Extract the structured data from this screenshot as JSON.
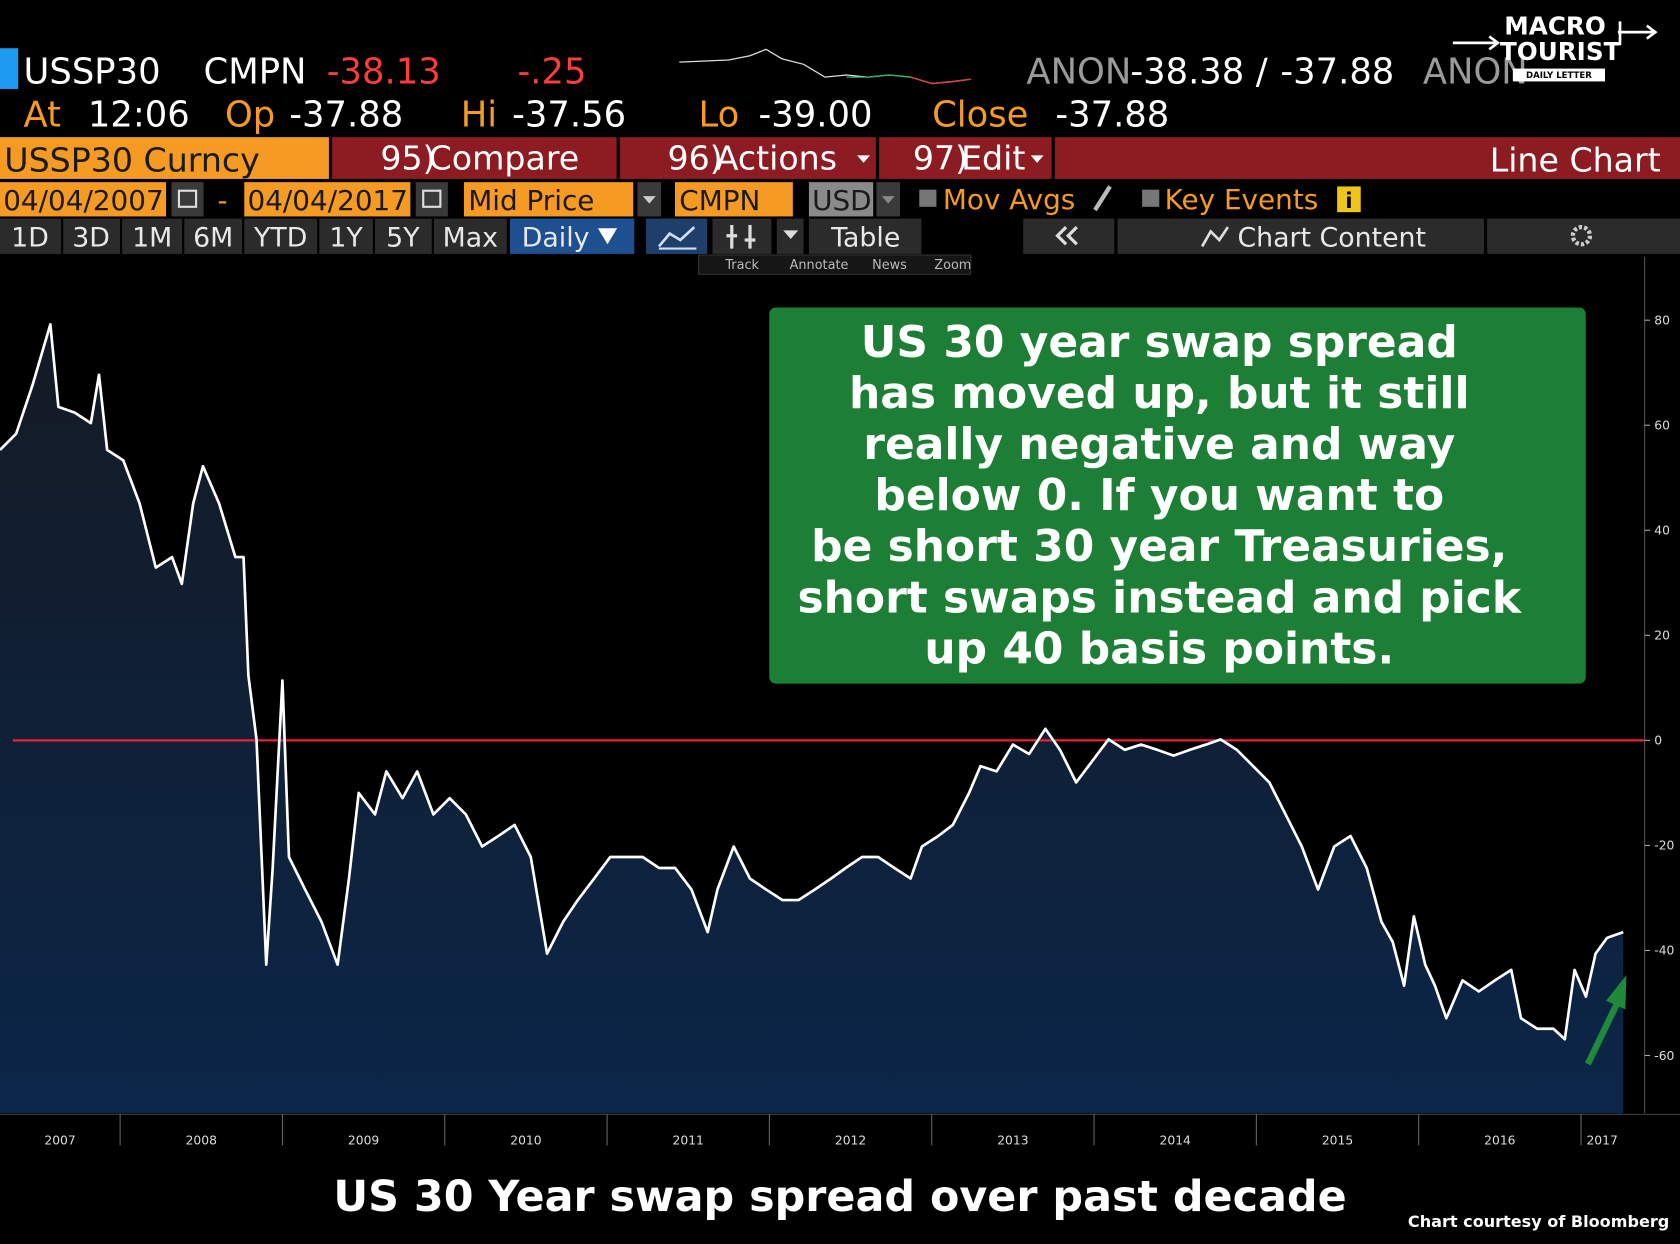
{
  "header": {
    "ticker": "USSP30",
    "source": "CMPN",
    "last": "-38.13",
    "change": "-.25",
    "bid_source": "ANON",
    "bid": "-38.38",
    "separator": "/",
    "ask": "-37.88",
    "ask_source": "ANON"
  },
  "quote": [
    {
      "label": "At",
      "value": "12:06"
    },
    {
      "label": "Op",
      "value": "-37.88"
    },
    {
      "label": "Hi",
      "value": "-37.56"
    },
    {
      "label": "Lo",
      "value": "-39.00"
    },
    {
      "label": "Close",
      "value": "-37.88"
    }
  ],
  "logo": {
    "line1": "MACRO",
    "line2": "TOURIST",
    "line3": "DAILY LETTER"
  },
  "menu": {
    "security": "USSP30 Curncy",
    "items": [
      {
        "number": "95)",
        "label": "Compare"
      },
      {
        "number": "96)",
        "label": "Actions"
      },
      {
        "number": "97)",
        "label": "Edit"
      }
    ],
    "chart_type": "Line Chart"
  },
  "range_bar": {
    "start": "04/04/2007",
    "dash": "-",
    "end": "04/04/2017",
    "price": "Mid Price",
    "source": "CMPN",
    "currency": "USD",
    "mov_avgs": "Mov Avgs",
    "key_events": "Key Events",
    "info": "i"
  },
  "tabs": [
    "1D",
    "3D",
    "1M",
    "6M",
    "YTD",
    "1Y",
    "5Y",
    "Max",
    "Daily"
  ],
  "table_tab": "Table",
  "chart_content": "Chart Content",
  "tools": [
    "Track",
    "Annotate",
    "News",
    "Zoom"
  ],
  "chart_data": {
    "type": "line",
    "title": "US 30 Year swap spread over past decade",
    "credit": "Chart courtesy of Bloomberg",
    "annotation": [
      "US 30 year swap spread",
      "has moved up, but it still",
      "really negative and way",
      "below 0.  If you want to",
      "be short 30 year Treasuries,",
      "short swaps instead and pick",
      "up 40 basis points."
    ],
    "color": "#ffffff",
    "x": [
      2007.26,
      2007.36,
      2007.46,
      2007.57,
      2007.62,
      2007.72,
      2007.82,
      2007.87,
      2007.92,
      2008.02,
      2008.12,
      2008.22,
      2008.32,
      2008.38,
      2008.45,
      2008.51,
      2008.61,
      2008.71,
      2008.76,
      2008.79,
      2008.84,
      2008.9,
      2008.94,
      2009.0,
      2009.04,
      2009.14,
      2009.24,
      2009.34,
      2009.41,
      2009.47,
      2009.57,
      2009.64,
      2009.74,
      2009.83,
      2009.93,
      2010.03,
      2010.13,
      2010.23,
      2010.33,
      2010.43,
      2010.53,
      2010.63,
      2010.73,
      2010.82,
      2010.92,
      2011.02,
      2011.12,
      2011.22,
      2011.32,
      2011.42,
      2011.52,
      2011.62,
      2011.68,
      2011.78,
      2011.88,
      2011.98,
      2012.08,
      2012.18,
      2012.28,
      2012.38,
      2012.47,
      2012.57,
      2012.67,
      2012.77,
      2012.87,
      2012.94,
      2013.04,
      2013.13,
      2013.23,
      2013.3,
      2013.4,
      2013.5,
      2013.6,
      2013.7,
      2013.79,
      2013.89,
      2013.99,
      2014.09,
      2014.19,
      2014.29,
      2014.39,
      2014.49,
      2014.59,
      2014.69,
      2014.78,
      2014.88,
      2014.98,
      2015.08,
      2015.18,
      2015.28,
      2015.38,
      2015.48,
      2015.58,
      2015.68,
      2015.77,
      2015.84,
      2015.91,
      2015.97,
      2016.04,
      2016.1,
      2016.17,
      2016.27,
      2016.37,
      2016.47,
      2016.57,
      2016.63,
      2016.73,
      2016.83,
      2016.9,
      2016.96,
      2017.03,
      2017.09,
      2017.16,
      2017.26
    ],
    "values": [
      55.3,
      58.4,
      67.6,
      79.2,
      63.5,
      62.4,
      60.4,
      69.6,
      55.3,
      53.3,
      45.1,
      32.9,
      34.9,
      29.8,
      45.1,
      52.2,
      45.1,
      34.9,
      34.9,
      12.4,
      0.2,
      -42.7,
      -24.3,
      11.4,
      -22.2,
      -28.4,
      -34.5,
      -42.7,
      -26.3,
      -10.0,
      -14.1,
      -5.9,
      -11.0,
      -5.9,
      -14.1,
      -11.0,
      -14.1,
      -20.2,
      -18.2,
      -16.1,
      -22.2,
      -40.6,
      -34.5,
      -30.4,
      -26.3,
      -22.2,
      -22.2,
      -22.2,
      -24.3,
      -24.3,
      -28.4,
      -36.5,
      -28.4,
      -20.2,
      -26.3,
      -28.4,
      -30.4,
      -30.4,
      -28.4,
      -26.3,
      -24.3,
      -22.2,
      -22.2,
      -24.3,
      -26.3,
      -20.2,
      -18.2,
      -16.1,
      -10.0,
      -4.9,
      -5.9,
      -0.8,
      -2.6,
      2.2,
      -1.8,
      -8.0,
      -3.9,
      0.2,
      -1.8,
      -0.8,
      -1.8,
      -2.9,
      -1.8,
      -0.8,
      0.2,
      -1.8,
      -4.9,
      -8.0,
      -14.1,
      -20.2,
      -28.4,
      -20.2,
      -18.2,
      -24.3,
      -34.5,
      -38.4,
      -46.7,
      -33.5,
      -42.7,
      -46.7,
      -52.9,
      -45.7,
      -47.8,
      -45.7,
      -43.7,
      -52.9,
      -54.9,
      -54.9,
      -56.9,
      -43.7,
      -48.8,
      -40.6,
      -37.6,
      -36.5
    ],
    "xlim": [
      2007.26,
      2017.26
    ],
    "xticks": [
      2007,
      2008,
      2009,
      2010,
      2011,
      2012,
      2013,
      2014,
      2015,
      2016,
      2017
    ],
    "ylim": [
      -71,
      92
    ],
    "yticks": [
      -60,
      -40,
      -20,
      0,
      20,
      40,
      60,
      80
    ],
    "reference_line": {
      "value": 0,
      "color": "#e8213a"
    }
  }
}
